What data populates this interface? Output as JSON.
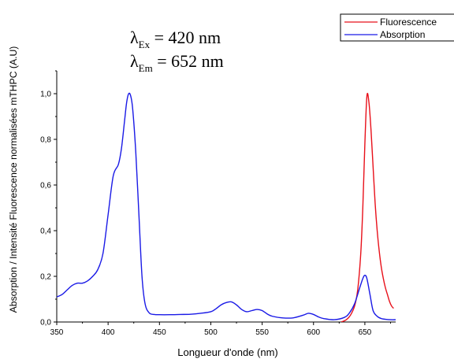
{
  "chart_data": {
    "type": "line",
    "annotation": {
      "line1": {
        "symbol": "λ",
        "sub": "Ex",
        "rest": " = 420 nm"
      },
      "line2": {
        "symbol": "λ",
        "sub": "Em",
        "rest": " = 652 nm"
      }
    },
    "xlabel": "Longueur d'onde (nm)",
    "ylabel": "Absorption / Intensité Fluorescence normalisées mTHPC (A.U)",
    "xlim": [
      350,
      680
    ],
    "ylim": [
      0,
      1.1
    ],
    "x_ticks": [
      "350",
      "400",
      "450",
      "500",
      "550",
      "600",
      "650"
    ],
    "y_ticks": [
      "0,0",
      "0,2",
      "0,4",
      "0,6",
      "0,8",
      "1,0"
    ],
    "legend": {
      "placement": "top-right",
      "entries": [
        "Fluorescence",
        "Absorption"
      ]
    },
    "series": [
      {
        "name": "Fluorescence",
        "color": "#e8101a",
        "x": [
          627,
          632,
          636,
          640,
          643,
          646,
          648,
          650,
          652,
          654,
          656,
          658,
          660,
          662,
          664,
          666,
          668,
          670,
          672,
          674,
          676,
          678
        ],
        "y": [
          0.0,
          0.01,
          0.03,
          0.07,
          0.14,
          0.3,
          0.5,
          0.78,
          0.99,
          0.96,
          0.84,
          0.68,
          0.52,
          0.4,
          0.31,
          0.24,
          0.19,
          0.15,
          0.12,
          0.09,
          0.07,
          0.06
        ]
      },
      {
        "name": "Absorption",
        "color": "#1a1ae6",
        "x": [
          350,
          355,
          360,
          365,
          370,
          375,
          380,
          385,
          390,
          395,
          400,
          405,
          410,
          413,
          416,
          418,
          420,
          422,
          424,
          427,
          430,
          433,
          436,
          440,
          445,
          450,
          460,
          470,
          480,
          490,
          500,
          505,
          510,
          515,
          520,
          525,
          530,
          535,
          540,
          545,
          550,
          555,
          560,
          570,
          580,
          590,
          595,
          600,
          605,
          610,
          620,
          630,
          635,
          640,
          645,
          648,
          650,
          652,
          655,
          658,
          662,
          666,
          670,
          675,
          680
        ],
        "y": [
          0.11,
          0.12,
          0.14,
          0.16,
          0.17,
          0.17,
          0.18,
          0.2,
          0.23,
          0.3,
          0.47,
          0.64,
          0.69,
          0.76,
          0.88,
          0.96,
          1.0,
          0.99,
          0.93,
          0.74,
          0.47,
          0.2,
          0.08,
          0.04,
          0.033,
          0.032,
          0.032,
          0.033,
          0.034,
          0.038,
          0.045,
          0.058,
          0.075,
          0.085,
          0.088,
          0.075,
          0.055,
          0.045,
          0.05,
          0.055,
          0.05,
          0.035,
          0.025,
          0.018,
          0.018,
          0.03,
          0.038,
          0.033,
          0.022,
          0.015,
          0.01,
          0.02,
          0.04,
          0.08,
          0.15,
          0.19,
          0.205,
          0.19,
          0.12,
          0.05,
          0.025,
          0.015,
          0.012,
          0.01,
          0.01
        ]
      }
    ]
  }
}
